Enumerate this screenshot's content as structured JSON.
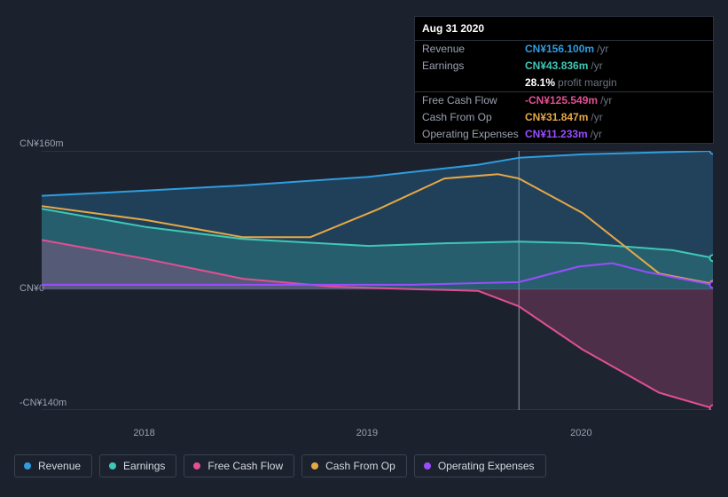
{
  "chart": {
    "background_color": "#1b222d",
    "y_top_value": 160,
    "y_bottom_value": -140,
    "y_top_label": "CN¥160m",
    "y_zero_label": "CN¥0",
    "y_bottom_label": "-CN¥140m",
    "xticks": [
      {
        "pos": 0.155,
        "label": "2018"
      },
      {
        "pos": 0.487,
        "label": "2019"
      },
      {
        "pos": 0.806,
        "label": "2020"
      }
    ],
    "cursor_x": 0.711,
    "series": {
      "revenue": {
        "label": "Revenue",
        "color": "#2f9de0",
        "fill": "rgba(47,157,224,0.25)",
        "points": [
          [
            0,
            108
          ],
          [
            0.155,
            114
          ],
          [
            0.3,
            120
          ],
          [
            0.487,
            130
          ],
          [
            0.65,
            144
          ],
          [
            0.711,
            152
          ],
          [
            0.806,
            156
          ],
          [
            1.0,
            160
          ]
        ]
      },
      "earnings": {
        "label": "Earnings",
        "color": "#3ec8b6",
        "fill": "rgba(62,200,182,0.22)",
        "points": [
          [
            0,
            93
          ],
          [
            0.155,
            72
          ],
          [
            0.3,
            58
          ],
          [
            0.487,
            50
          ],
          [
            0.6,
            53
          ],
          [
            0.711,
            55
          ],
          [
            0.806,
            53
          ],
          [
            0.94,
            45
          ],
          [
            1.0,
            36
          ]
        ]
      },
      "fcf": {
        "label": "Free Cash Flow",
        "color": "#e15094",
        "fill": "rgba(225,80,148,0.25)",
        "points": [
          [
            0,
            57
          ],
          [
            0.155,
            35
          ],
          [
            0.3,
            12
          ],
          [
            0.43,
            3
          ],
          [
            0.55,
            0
          ],
          [
            0.65,
            -2
          ],
          [
            0.711,
            -20
          ],
          [
            0.806,
            -70
          ],
          [
            0.92,
            -120
          ],
          [
            1.0,
            -138
          ]
        ]
      },
      "cashop": {
        "label": "Cash From Op",
        "color": "#e6a846",
        "fill": "none",
        "points": [
          [
            0,
            96
          ],
          [
            0.155,
            80
          ],
          [
            0.3,
            60
          ],
          [
            0.4,
            60
          ],
          [
            0.5,
            92
          ],
          [
            0.6,
            128
          ],
          [
            0.68,
            133
          ],
          [
            0.711,
            128
          ],
          [
            0.806,
            88
          ],
          [
            0.92,
            18
          ],
          [
            1.0,
            6
          ]
        ]
      },
      "opex": {
        "label": "Operating Expenses",
        "color": "#9a4dff",
        "fill": "none",
        "points": [
          [
            0,
            5
          ],
          [
            0.3,
            5
          ],
          [
            0.55,
            5
          ],
          [
            0.711,
            8
          ],
          [
            0.8,
            26
          ],
          [
            0.85,
            30
          ],
          [
            0.9,
            20
          ],
          [
            1.0,
            5
          ]
        ]
      }
    }
  },
  "tooltip": {
    "date": "Aug 31 2020",
    "rows": [
      {
        "label": "Revenue",
        "value": "CN¥156.100m",
        "color": "#2f9de0",
        "unit": "/yr",
        "border": true
      },
      {
        "label": "Earnings",
        "value": "CN¥43.836m",
        "color": "#3ec8b6",
        "unit": "/yr",
        "border": false
      },
      {
        "label": "",
        "value": "28.1%",
        "color": "#ffffff",
        "sub": " profit margin",
        "border": false
      },
      {
        "label": "Free Cash Flow",
        "value": "-CN¥125.549m",
        "color": "#e15094",
        "unit": "/yr",
        "border": true
      },
      {
        "label": "Cash From Op",
        "value": "CN¥31.847m",
        "color": "#e6a846",
        "unit": "/yr",
        "border": false
      },
      {
        "label": "Operating Expenses",
        "value": "CN¥11.233m",
        "color": "#9a4dff",
        "unit": "/yr",
        "border": false
      }
    ]
  }
}
